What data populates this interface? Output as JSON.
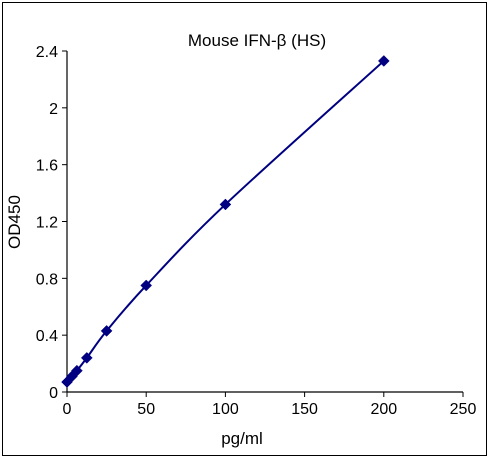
{
  "chart_data": {
    "type": "line",
    "title": "Mouse IFN-β (HS)",
    "xlabel": "pg/ml",
    "ylabel": "OD450",
    "xlim": [
      0,
      250
    ],
    "ylim": [
      0,
      2.4
    ],
    "x_ticks": [
      0,
      50,
      100,
      150,
      200,
      250
    ],
    "y_ticks": [
      0,
      0.4,
      0.8,
      1.2,
      1.6,
      2,
      2.4
    ],
    "x_tick_labels": [
      "0",
      "50",
      "100",
      "150",
      "200",
      "250"
    ],
    "y_tick_labels": [
      "0",
      "0.4",
      "0.8",
      "1.2",
      "1.6",
      "2",
      "2.4"
    ],
    "grid": false,
    "legend": "none",
    "series": [
      {
        "color": "#000080",
        "marker": "diamond",
        "x": [
          0,
          3.125,
          6.25,
          12.5,
          25,
          50,
          100,
          200
        ],
        "y": [
          0.07,
          0.11,
          0.15,
          0.24,
          0.43,
          0.75,
          1.32,
          2.33
        ]
      }
    ]
  }
}
